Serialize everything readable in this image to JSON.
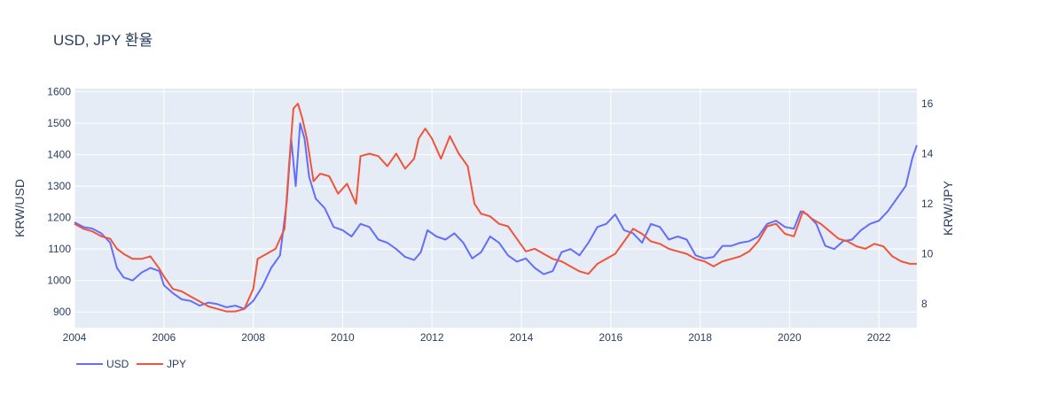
{
  "chart_data": {
    "type": "line",
    "title": "USD, JPY 환율",
    "xlabel": "",
    "y_left_label": "KRW/USD",
    "y_right_label": "KRW/JPY",
    "x_ticks": [
      "2004",
      "2006",
      "2008",
      "2010",
      "2012",
      "2014",
      "2016",
      "2018",
      "2020",
      "2022"
    ],
    "y_left_ticks": [
      900,
      1000,
      1100,
      1200,
      1300,
      1400,
      1500,
      1600
    ],
    "y_right_ticks": [
      8,
      10,
      12,
      14,
      16
    ],
    "x_range": [
      2004.0,
      2022.85
    ],
    "y_left_range": [
      850,
      1610
    ],
    "y_right_range": [
      7.05,
      16.6
    ],
    "grid": true,
    "legend_position": "bottom-left",
    "series": [
      {
        "name": "USD",
        "axis": "left",
        "color": "#636efa",
        "x": [
          2004.0,
          2004.2,
          2004.4,
          2004.6,
          2004.8,
          2004.95,
          2005.1,
          2005.3,
          2005.5,
          2005.7,
          2005.9,
          2006.0,
          2006.2,
          2006.4,
          2006.6,
          2006.8,
          2007.0,
          2007.2,
          2007.4,
          2007.6,
          2007.8,
          2008.0,
          2008.2,
          2008.4,
          2008.6,
          2008.75,
          2008.85,
          2008.95,
          2009.05,
          2009.15,
          2009.25,
          2009.4,
          2009.6,
          2009.8,
          2010.0,
          2010.2,
          2010.4,
          2010.6,
          2010.8,
          2011.0,
          2011.2,
          2011.4,
          2011.6,
          2011.75,
          2011.9,
          2012.1,
          2012.3,
          2012.5,
          2012.7,
          2012.9,
          2013.1,
          2013.3,
          2013.5,
          2013.7,
          2013.9,
          2014.1,
          2014.3,
          2014.5,
          2014.7,
          2014.9,
          2015.1,
          2015.3,
          2015.5,
          2015.7,
          2015.9,
          2016.1,
          2016.3,
          2016.5,
          2016.7,
          2016.9,
          2017.1,
          2017.3,
          2017.5,
          2017.7,
          2017.9,
          2018.1,
          2018.3,
          2018.5,
          2018.7,
          2018.9,
          2019.1,
          2019.3,
          2019.5,
          2019.7,
          2019.9,
          2020.1,
          2020.25,
          2020.4,
          2020.6,
          2020.8,
          2021.0,
          2021.2,
          2021.4,
          2021.6,
          2021.8,
          2022.0,
          2022.2,
          2022.4,
          2022.6,
          2022.75,
          2022.85
        ],
        "values": [
          1185,
          1170,
          1165,
          1150,
          1120,
          1040,
          1010,
          1000,
          1025,
          1040,
          1030,
          985,
          960,
          940,
          935,
          920,
          930,
          925,
          915,
          920,
          910,
          935,
          980,
          1040,
          1080,
          1250,
          1450,
          1300,
          1500,
          1450,
          1330,
          1260,
          1230,
          1170,
          1160,
          1140,
          1180,
          1170,
          1130,
          1120,
          1100,
          1075,
          1065,
          1090,
          1160,
          1140,
          1130,
          1150,
          1120,
          1070,
          1090,
          1140,
          1120,
          1080,
          1060,
          1070,
          1040,
          1020,
          1030,
          1090,
          1100,
          1080,
          1120,
          1170,
          1180,
          1210,
          1160,
          1150,
          1120,
          1180,
          1170,
          1130,
          1140,
          1130,
          1080,
          1070,
          1075,
          1110,
          1110,
          1120,
          1125,
          1140,
          1180,
          1190,
          1170,
          1165,
          1220,
          1210,
          1180,
          1110,
          1100,
          1125,
          1130,
          1160,
          1180,
          1190,
          1220,
          1260,
          1300,
          1390,
          1430
        ]
      },
      {
        "name": "JPY",
        "axis": "right",
        "color": "#ef553b",
        "x": [
          2004.0,
          2004.2,
          2004.4,
          2004.6,
          2004.8,
          2004.95,
          2005.1,
          2005.3,
          2005.5,
          2005.7,
          2005.9,
          2006.0,
          2006.2,
          2006.4,
          2006.6,
          2006.8,
          2007.0,
          2007.2,
          2007.4,
          2007.6,
          2007.8,
          2008.0,
          2008.1,
          2008.3,
          2008.5,
          2008.7,
          2008.8,
          2008.9,
          2009.0,
          2009.1,
          2009.2,
          2009.35,
          2009.5,
          2009.7,
          2009.9,
          2010.1,
          2010.3,
          2010.4,
          2010.6,
          2010.8,
          2011.0,
          2011.2,
          2011.4,
          2011.6,
          2011.7,
          2011.85,
          2012.0,
          2012.2,
          2012.4,
          2012.6,
          2012.8,
          2012.95,
          2013.1,
          2013.3,
          2013.5,
          2013.7,
          2013.9,
          2014.1,
          2014.3,
          2014.5,
          2014.7,
          2014.9,
          2015.1,
          2015.3,
          2015.5,
          2015.7,
          2015.9,
          2016.1,
          2016.3,
          2016.5,
          2016.7,
          2016.9,
          2017.1,
          2017.3,
          2017.5,
          2017.7,
          2017.9,
          2018.1,
          2018.3,
          2018.5,
          2018.7,
          2018.9,
          2019.1,
          2019.3,
          2019.5,
          2019.7,
          2019.9,
          2020.1,
          2020.3,
          2020.5,
          2020.7,
          2020.9,
          2021.1,
          2021.3,
          2021.5,
          2021.7,
          2021.9,
          2022.1,
          2022.3,
          2022.5,
          2022.7,
          2022.85
        ],
        "values": [
          11.2,
          11.0,
          10.9,
          10.7,
          10.6,
          10.2,
          10.0,
          9.8,
          9.8,
          9.9,
          9.4,
          9.1,
          8.6,
          8.5,
          8.3,
          8.1,
          7.9,
          7.8,
          7.7,
          7.7,
          7.8,
          8.6,
          9.8,
          10.0,
          10.2,
          11.0,
          13.5,
          15.8,
          16.0,
          15.4,
          14.6,
          12.9,
          13.2,
          13.1,
          12.4,
          12.8,
          12.0,
          13.9,
          14.0,
          13.9,
          13.5,
          14.0,
          13.4,
          13.8,
          14.6,
          15.0,
          14.6,
          13.8,
          14.7,
          14.0,
          13.5,
          12.0,
          11.6,
          11.5,
          11.2,
          11.1,
          10.6,
          10.1,
          10.2,
          10.0,
          9.8,
          9.7,
          9.5,
          9.3,
          9.2,
          9.6,
          9.8,
          10.0,
          10.5,
          11.0,
          10.8,
          10.5,
          10.4,
          10.2,
          10.1,
          10.0,
          9.8,
          9.7,
          9.5,
          9.7,
          9.8,
          9.9,
          10.1,
          10.5,
          11.1,
          11.2,
          10.8,
          10.7,
          11.7,
          11.4,
          11.2,
          10.9,
          10.6,
          10.5,
          10.3,
          10.2,
          10.4,
          10.3,
          9.9,
          9.7,
          9.6,
          9.6
        ]
      }
    ]
  }
}
